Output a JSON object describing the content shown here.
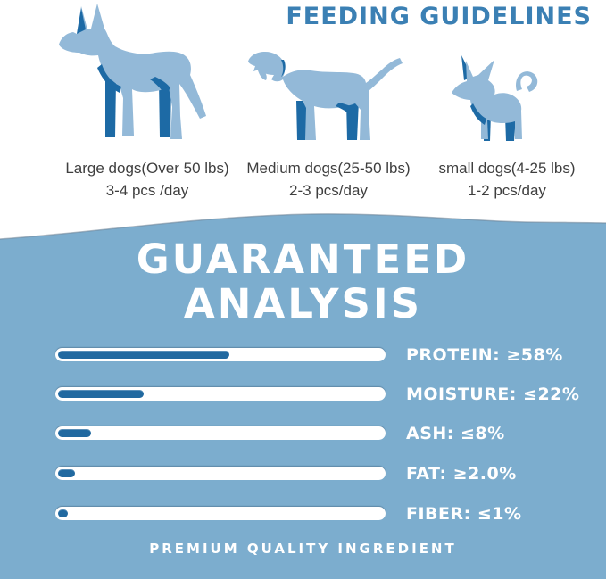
{
  "title": "FEEDING GUIDELINES",
  "colors": {
    "title_blue": "#3b80b4",
    "section_bg": "#7cadce",
    "bar_fill": "#2169a0",
    "dog_light": "#93b9d8",
    "dog_dark": "#1d6aa5",
    "caption_text": "#3f3f3f",
    "white": "#ffffff"
  },
  "feeding": {
    "dogs": [
      {
        "size": "large",
        "line1": "Large dogs(Over 50 lbs)",
        "line2": "3-4 pcs /day"
      },
      {
        "size": "medium",
        "line1": "Medium dogs(25-50 lbs)",
        "line2": "2-3 pcs/day"
      },
      {
        "size": "small",
        "line1": "small dogs(4-25 lbs)",
        "line2": "1-2 pcs/day"
      }
    ]
  },
  "analysis": {
    "heading_line1": "GUARANTEED",
    "heading_line2": "ANALYSIS",
    "rows": [
      {
        "label": "PROTEIN: ≥58%",
        "percent": 52
      },
      {
        "label": "MOISTURE: ≤22%",
        "percent": 26
      },
      {
        "label": "ASH: ≤8%",
        "percent": 10
      },
      {
        "label": "FAT: ≥2.0%",
        "percent": 5
      },
      {
        "label": "FIBER: ≤1%",
        "percent": 3
      }
    ],
    "footer": "PREMIUM QUALITY INGREDIENT"
  },
  "chart_data": {
    "type": "bar",
    "orientation": "horizontal",
    "title": "GUARANTEED ANALYSIS",
    "categories": [
      "PROTEIN",
      "MOISTURE",
      "ASH",
      "FAT",
      "FIBER"
    ],
    "values": [
      58,
      22,
      8,
      2.0,
      1
    ],
    "comparators": [
      "≥",
      "≤",
      "≤",
      "≥",
      "≤"
    ],
    "value_labels": [
      "≥58%",
      "≤22%",
      "≤8%",
      "≥2.0%",
      "≤1%"
    ],
    "bar_fill_percent_of_track": [
      52,
      26,
      10,
      5,
      3
    ],
    "legend": "none",
    "grid": false
  }
}
